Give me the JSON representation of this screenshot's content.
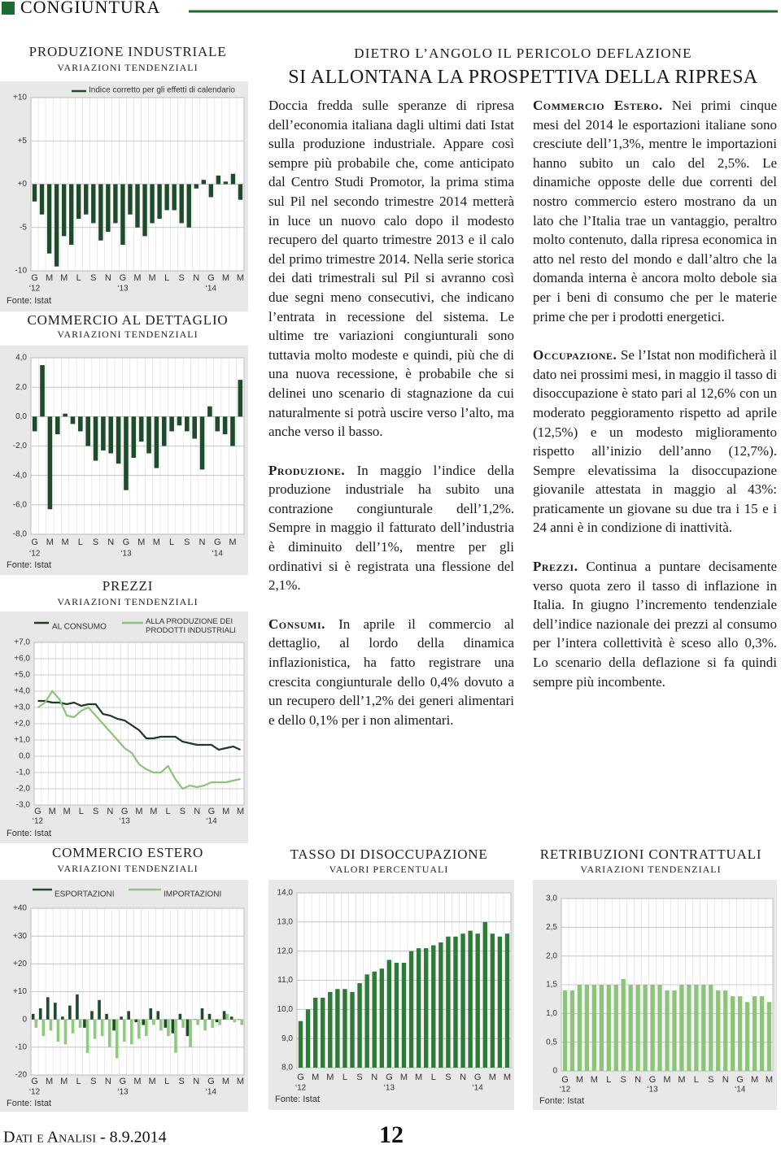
{
  "header": {
    "section": "CONGIUNTURA"
  },
  "headline": {
    "kicker": "DIETRO L’ANGOLO IL PERICOLO DEFLAZIONE",
    "title": "SI ALLONTANA LA PROSPETTIVA DELLA RIPRESA"
  },
  "article": {
    "intro": "Doccia fredda sulle speranze di ripresa dell’economia italiana dagli ultimi dati Istat sulla produzione industriale. Appare così sempre più probabile che, come anticipato dal Centro Studi Promotor, la prima stima sul Pil nel secondo trimestre 2014 metterà in luce un nuovo calo dopo il modesto recupero del quarto trimestre 2013 e il calo del primo trimestre 2014. Nella serie storica dei dati trimestrali sul Pil si avranno così due segni meno consecutivi, che indicano l’entrata in recessione del sistema. Le ultime tre variazioni congiunturali sono tuttavia molto modeste e quindi, più che di una nuova recessione, è probabile che si delinei uno scenario di stagnazione da cui naturalmente si potrà uscire verso l’alto, ma anche verso il basso.",
    "sections": [
      {
        "lead": "Produzione.",
        "text": "In maggio l’indice della produzione industriale ha subito una contrazione congiunturale dell’1,2%. Sempre in maggio il fatturato dell’industria è diminuito dell’1%, mentre per gli ordinativi si è registrata una flessione del 2,1%."
      },
      {
        "lead": "Consumi.",
        "text": "In aprile il commercio al dettaglio, al lordo della dinamica inflazionistica, ha fatto registrare una crescita congiunturale dello 0,4% dovuto a un recupero dell’1,2% dei generi alimentari e dello 0,1% per i non alimentari."
      },
      {
        "lead": "Commercio Estero.",
        "text": "Nei primi cinque mesi del 2014 le esportazioni italiane sono cresciute dell’1,3%, mentre le importazioni hanno subito un calo del 2,5%. Le dinamiche opposte delle due correnti del nostro commercio estero mostrano da un lato che l’Italia trae un vantaggio, peraltro molto contenuto, dalla ripresa economica in atto nel resto del mondo e dall’altro che la domanda interna è ancora molto debole sia per i beni di consumo che per le materie prime che per i prodotti energetici."
      },
      {
        "lead": "Occupazione.",
        "text": "Se l’Istat non modificherà il dato nei prossimi mesi, in maggio il tasso di disoccupazione è stato pari al 12,6% con un moderato peggioramento rispetto ad aprile (12,5%) e un modesto miglioramento rispetto all’inizio dell’anno (12,7%). Sempre elevatissima la disoccupazione giovanile attestata in maggio al 43%: praticamente un giovane su due tra i 15 e i 24 anni è in condizione di inattività."
      },
      {
        "lead": "Prezzi.",
        "text": "Continua a puntare decisamente verso quota zero il tasso di inflazione in Italia. In giugno l’incremento tendenziale dell’indice nazionale dei prezzi al consumo per l’intera collettività è sceso allo 0,3%. Lo scenario della deflazione si fa quindi sempre più incombente."
      }
    ]
  },
  "chart_data": [
    {
      "type": "bar",
      "title": "PRODUZIONE INDUSTRIALE",
      "subtitle": "VARIAZIONI TENDENZIALI",
      "source": "Fonte: Istat",
      "categories": [
        "G",
        null,
        "M",
        null,
        "M",
        null,
        "L",
        null,
        "S",
        null,
        "N",
        null,
        "G",
        null,
        "M",
        null,
        "M",
        null,
        "L",
        null,
        "S",
        null,
        "N",
        null,
        "G",
        null,
        "M",
        null,
        "M"
      ],
      "x_groups": [
        "‘12",
        "‘13",
        "‘14"
      ],
      "series": [
        {
          "name": "Indice corretto per gli effetti di calendario",
          "color": "#1e4b2a",
          "values": [
            -2.0,
            -3.5,
            -8.0,
            -9.5,
            -6.0,
            -7.0,
            -4.0,
            -3.5,
            -4.5,
            -6.5,
            -5.5,
            -4.5,
            -7.0,
            -3.5,
            -5.0,
            -6.0,
            -4.5,
            -4.0,
            -3.0,
            -3.0,
            -4.5,
            -5.0,
            -0.5,
            0.5,
            -1.5,
            1.0,
            0.3,
            1.2,
            -1.8
          ]
        }
      ],
      "ylim": [
        -10,
        10
      ],
      "yticks": [
        {
          "value": 10,
          "label": "+10"
        },
        {
          "value": 5,
          "label": "+5"
        },
        {
          "value": 0,
          "label": "+0"
        },
        -5,
        -10
      ],
      "grid": true
    },
    {
      "type": "bar",
      "title": "COMMERCIO AL DETTAGLIO",
      "subtitle": "VARIAZIONI TENDENZIALI",
      "source": "Fonte: Istat",
      "categories": [
        "G",
        null,
        "M",
        null,
        "M",
        null,
        "L",
        null,
        "S",
        null,
        "N",
        null,
        "G",
        null,
        "M",
        null,
        "M",
        null,
        "L",
        null,
        "S",
        null,
        "N",
        null,
        "G",
        null,
        "M",
        null
      ],
      "x_groups": [
        "‘12",
        "‘13",
        "‘14"
      ],
      "series": [
        {
          "color": "#1e4b2a",
          "values": [
            -1.0,
            3.5,
            -6.3,
            -1.2,
            0.2,
            -0.5,
            -1.0,
            -2.0,
            -3.0,
            -2.3,
            -2.5,
            -3.2,
            -5.0,
            -2.8,
            -1.7,
            -2.5,
            -3.5,
            -2.0,
            -1.0,
            -0.6,
            -1.0,
            -1.5,
            -3.6,
            0.7,
            -1.0,
            -1.2,
            -2.0,
            2.5
          ]
        }
      ],
      "ylim": [
        -8,
        4
      ],
      "yticks": [
        {
          "value": 4,
          "label": "4,0"
        },
        {
          "value": 2,
          "label": "2,0"
        },
        {
          "value": 0,
          "label": "0,0"
        },
        {
          "value": -2,
          "label": "-2,0"
        },
        {
          "value": -4,
          "label": "-4,0"
        },
        {
          "value": -6,
          "label": "-6,0"
        },
        {
          "value": -8,
          "label": "-8,0"
        }
      ],
      "grid": true
    },
    {
      "type": "line",
      "title": "PREZZI",
      "subtitle": "VARIAZIONI TENDENZIALI",
      "source": "Fonte: Istat",
      "categories": [
        "G",
        null,
        "M",
        null,
        "M",
        null,
        "L",
        null,
        "S",
        null,
        "N",
        null,
        "G",
        null,
        "M",
        null,
        "M",
        null,
        "L",
        null,
        "S",
        null,
        "N",
        null,
        "G",
        null,
        "M",
        null,
        "M"
      ],
      "x_groups": [
        "‘12",
        "‘13",
        "‘14"
      ],
      "series": [
        {
          "name": "AL CONSUMO",
          "color": "#1e3a26",
          "values": [
            3.4,
            3.4,
            3.3,
            3.3,
            3.2,
            3.3,
            3.1,
            3.2,
            3.2,
            2.6,
            2.5,
            2.3,
            2.2,
            1.9,
            1.6,
            1.1,
            1.1,
            1.2,
            1.2,
            1.2,
            0.9,
            0.8,
            0.7,
            0.7,
            0.7,
            0.4,
            0.5,
            0.6,
            0.4
          ]
        },
        {
          "name": "ALLA PRODUZIONE DEI PRODOTTI INDUSTRIALI",
          "color": "#8cc47a",
          "values": [
            3.0,
            3.3,
            4.0,
            3.5,
            2.5,
            2.4,
            2.8,
            3.0,
            2.5,
            2.0,
            1.5,
            1.0,
            0.5,
            0.2,
            -0.5,
            -0.8,
            -1.0,
            -1.0,
            -0.6,
            -1.4,
            -2.0,
            -1.8,
            -1.9,
            -1.8,
            -1.6,
            -1.6,
            -1.6,
            -1.5,
            -1.4
          ]
        }
      ],
      "ylim": [
        -3,
        7
      ],
      "yticks": [
        {
          "value": 7,
          "label": "+7,0"
        },
        {
          "value": 6,
          "label": "+6,0"
        },
        {
          "value": 5,
          "label": "+5,0"
        },
        {
          "value": 4,
          "label": "+4,0"
        },
        {
          "value": 3,
          "label": "+3,0"
        },
        {
          "value": 2,
          "label": "+2,0"
        },
        {
          "value": 1,
          "label": "+1,0"
        },
        {
          "value": 0,
          "label": "0,0"
        },
        {
          "value": -1,
          "label": "-1,0"
        },
        {
          "value": -2,
          "label": "-2,0"
        },
        {
          "value": -3,
          "label": "-3,0"
        }
      ],
      "grid": true
    },
    {
      "type": "bar",
      "title": "COMMERCIO ESTERO",
      "subtitle": "VARIAZIONI TENDENZIALI",
      "source": "Fonte: Istat",
      "categories": [
        "G",
        null,
        "M",
        null,
        "M",
        null,
        "L",
        null,
        "S",
        null,
        "N",
        null,
        "G",
        null,
        "M",
        null,
        "M",
        null,
        "L",
        null,
        "S",
        null,
        "N",
        null,
        "G",
        null,
        "M",
        null,
        "M"
      ],
      "x_groups": [
        "‘12",
        "‘13",
        "‘14"
      ],
      "series": [
        {
          "name": "ESPORTAZIONI",
          "color": "#1e4b2a",
          "values": [
            2,
            4,
            8,
            6,
            1,
            5,
            9,
            -3,
            3,
            7,
            2,
            -4,
            1,
            3,
            -1,
            -2,
            4,
            3,
            -3,
            -5,
            2,
            -6,
            0,
            4,
            2,
            -1,
            3,
            1,
            0
          ]
        },
        {
          "name": "IMPORTAZIONI",
          "color": "#8fc97f",
          "values": [
            -3,
            -6,
            -4,
            -8,
            -9,
            -5,
            -3,
            -12,
            -7,
            -6,
            -10,
            -14,
            -8,
            -9,
            -7,
            -6,
            -2,
            -4,
            -6,
            -12,
            -3,
            -10,
            -2,
            -4,
            -3,
            -2,
            2,
            -1,
            -2
          ]
        }
      ],
      "ylim": [
        -20,
        40
      ],
      "yticks": [
        {
          "value": 40,
          "label": "+40"
        },
        {
          "value": 30,
          "label": "+30"
        },
        {
          "value": 20,
          "label": "+20"
        },
        {
          "value": 10,
          "label": "+10"
        },
        0,
        -10,
        -20
      ],
      "grid": true
    },
    {
      "type": "bar",
      "title": "TASSO DI DISOCCUPAZIONE",
      "subtitle": "VALORI PERCENTUALI",
      "source": "Fonte: Istat",
      "categories": [
        "G",
        null,
        "M",
        null,
        "M",
        null,
        "L",
        null,
        "S",
        null,
        "N",
        null,
        "G",
        null,
        "M",
        null,
        "M",
        null,
        "L",
        null,
        "S",
        null,
        "N",
        null,
        "G",
        null,
        "M",
        null,
        "M"
      ],
      "x_groups": [
        "‘12",
        "‘13",
        "‘14"
      ],
      "series": [
        {
          "color": "#2f7a38",
          "values": [
            9.6,
            10.0,
            10.4,
            10.4,
            10.6,
            10.7,
            10.7,
            10.6,
            10.9,
            11.2,
            11.3,
            11.4,
            11.7,
            11.6,
            11.6,
            12.0,
            12.1,
            12.1,
            12.2,
            12.3,
            12.5,
            12.5,
            12.6,
            12.7,
            12.6,
            13.0,
            12.6,
            12.5,
            12.6
          ]
        }
      ],
      "ylim": [
        8,
        14
      ],
      "yticks": [
        {
          "value": 14,
          "label": "14,0"
        },
        {
          "value": 13,
          "label": "13,0"
        },
        {
          "value": 12,
          "label": "12,0"
        },
        {
          "value": 11,
          "label": "11,0"
        },
        {
          "value": 10,
          "label": "10,0"
        },
        {
          "value": 9,
          "label": "9,0"
        },
        {
          "value": 8,
          "label": "8,0"
        }
      ],
      "grid": true
    },
    {
      "type": "bar",
      "title": "RETRIBUZIONI CONTRATTUALI",
      "subtitle": "VARIAZIONI TENDENZIALI",
      "source": "Fonte: Istat",
      "categories": [
        "G",
        null,
        "M",
        null,
        "M",
        null,
        "L",
        null,
        "S",
        null,
        "N",
        null,
        "G",
        null,
        "M",
        null,
        "M",
        null,
        "L",
        null,
        "S",
        null,
        "N",
        null,
        "G",
        null,
        "M",
        null,
        "M"
      ],
      "x_groups": [
        "‘12",
        "‘13",
        "‘14"
      ],
      "series": [
        {
          "color": "#8cc47a",
          "values": [
            1.4,
            1.4,
            1.5,
            1.5,
            1.5,
            1.5,
            1.5,
            1.5,
            1.6,
            1.5,
            1.5,
            1.5,
            1.5,
            1.5,
            1.4,
            1.4,
            1.5,
            1.5,
            1.5,
            1.5,
            1.5,
            1.4,
            1.4,
            1.3,
            1.3,
            1.2,
            1.3,
            1.3,
            1.2
          ]
        }
      ],
      "ylim": [
        0,
        3
      ],
      "yticks": [
        {
          "value": 3,
          "label": "3,0"
        },
        {
          "value": 2.5,
          "label": "2,5"
        },
        {
          "value": 2,
          "label": "2,0"
        },
        {
          "value": 1.5,
          "label": "1,5"
        },
        {
          "value": 1,
          "label": "1,0"
        },
        {
          "value": 0.5,
          "label": "0,5"
        },
        0
      ],
      "grid": true
    }
  ],
  "footer": {
    "publication": "Dati e Analisi - 8.9.2014",
    "page": "12"
  }
}
